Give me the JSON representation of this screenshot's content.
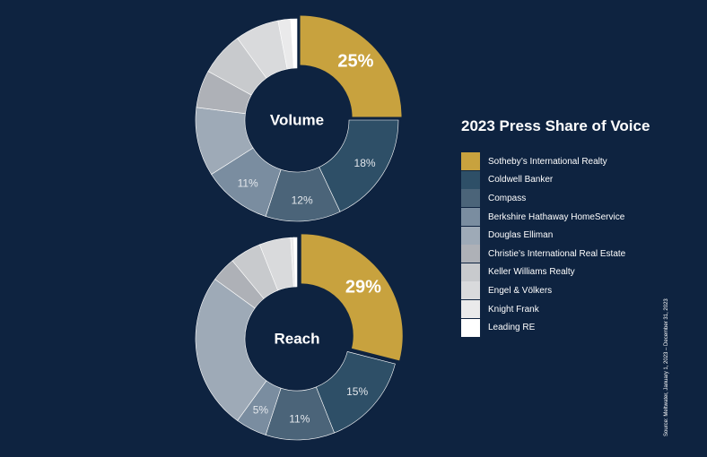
{
  "chart_data": [
    {
      "type": "pie",
      "subtype": "donut",
      "center_label": "Volume",
      "categories": [
        "Sotheby's International Realty",
        "Coldwell Banker",
        "Compass",
        "Berkshire Hathaway HomeService",
        "Douglas Elliman",
        "Christie's International Real Estate",
        "Keller Williams Realty",
        "Engel & Völkers",
        "Knight Frank",
        "Leading RE"
      ],
      "values": [
        25,
        18,
        12,
        11,
        11,
        6,
        7,
        7,
        2,
        1
      ],
      "data_labels": [
        "25%",
        "18%",
        "12%",
        "11%",
        "",
        "",
        "",
        "",
        "",
        ""
      ]
    },
    {
      "type": "pie",
      "subtype": "donut",
      "center_label": "Reach",
      "categories": [
        "Sotheby's International Realty",
        "Coldwell Banker",
        "Compass",
        "Berkshire Hathaway HomeService",
        "Douglas Elliman",
        "Christie's International Real Estate",
        "Keller Williams Realty",
        "Engel & Völkers",
        "Knight Frank",
        "Leading RE"
      ],
      "values": [
        29,
        15,
        11,
        5,
        25,
        4,
        5,
        5,
        0.5,
        0.5
      ],
      "data_labels": [
        "29%",
        "15%",
        "11%",
        "5%",
        "",
        "",
        "",
        "",
        "",
        ""
      ]
    }
  ],
  "legend": {
    "title": "2023 Press Share of Voice",
    "items": [
      {
        "label": "Sotheby’s International Realty",
        "color": "#c8a23e"
      },
      {
        "label": "Coldwell Banker",
        "color": "#2e4f67"
      },
      {
        "label": "Compass",
        "color": "#4b6479"
      },
      {
        "label": "Berkshire Hathaway HomeService",
        "color": "#7a8da0"
      },
      {
        "label": "Douglas Elliman",
        "color": "#9eaab7"
      },
      {
        "label": "Christie’s International Real Estate",
        "color": "#aeb1b7"
      },
      {
        "label": "Keller Williams Realty",
        "color": "#c8cacd"
      },
      {
        "label": "Engel & Völkers",
        "color": "#d9dadc"
      },
      {
        "label": "Knight Frank",
        "color": "#eaeaeb"
      },
      {
        "label": "Leading RE",
        "color": "#ffffff"
      }
    ]
  },
  "source": "Source: Meltwater, January 1, 2023 – December 31, 2023",
  "colors": {
    "background": "#0e2340",
    "label_on_gold": "#ffffff",
    "label_on_dark": "#e3e7ec"
  }
}
